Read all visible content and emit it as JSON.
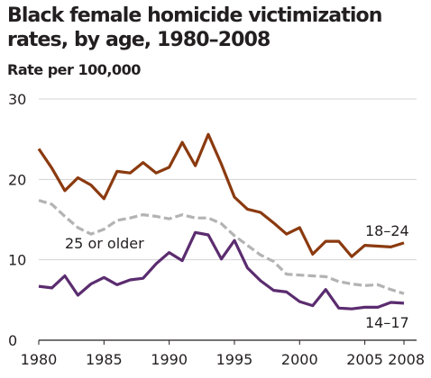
{
  "chart_data": {
    "type": "line",
    "title": "Black female homicide victimization rates, by age, 1980–2008",
    "ylabel": "Rate per 100,000",
    "xlabel": "",
    "x": [
      1980,
      1981,
      1982,
      1983,
      1984,
      1985,
      1986,
      1987,
      1988,
      1989,
      1990,
      1991,
      1992,
      1993,
      1994,
      1995,
      1996,
      1997,
      1998,
      1999,
      2000,
      2001,
      2002,
      2003,
      2004,
      2005,
      2006,
      2007,
      2008
    ],
    "xticks": [
      1980,
      1985,
      1990,
      1995,
      2000,
      2005,
      2008
    ],
    "xtick_labels": [
      "1980",
      "1985",
      "1990",
      "1995",
      "2000",
      "2005",
      "2008"
    ],
    "yticks": [
      0,
      10,
      20,
      30
    ],
    "ytick_labels": [
      "0",
      "10",
      "20",
      "30"
    ],
    "xlim": [
      1980,
      2008
    ],
    "ylim": [
      0,
      30
    ],
    "grid": "horizontal",
    "series": [
      {
        "name": "18–24",
        "color": "#8b3a0f",
        "style": "solid",
        "values": [
          23.8,
          21.4,
          18.6,
          20.2,
          19.3,
          17.6,
          21.0,
          20.8,
          22.1,
          20.8,
          21.5,
          24.6,
          21.7,
          25.6,
          21.9,
          17.8,
          16.3,
          15.9,
          14.6,
          13.2,
          14.0,
          10.7,
          12.3,
          12.3,
          10.4,
          11.8,
          11.7,
          11.6,
          12.1
        ]
      },
      {
        "name": "25 or older",
        "color": "#b3b3b3",
        "style": "dashed",
        "values": [
          17.4,
          16.9,
          15.4,
          14.0,
          13.2,
          13.8,
          14.9,
          15.2,
          15.6,
          15.4,
          15.1,
          15.6,
          15.2,
          15.2,
          14.5,
          13.0,
          11.8,
          10.6,
          9.8,
          8.2,
          8.1,
          8.0,
          7.9,
          7.3,
          7.0,
          6.8,
          6.9,
          6.3,
          5.8
        ]
      },
      {
        "name": "14–17",
        "color": "#5b2c6f",
        "style": "solid",
        "values": [
          6.7,
          6.5,
          8.0,
          5.6,
          7.0,
          7.8,
          6.9,
          7.5,
          7.7,
          9.5,
          10.9,
          9.9,
          13.4,
          13.1,
          10.1,
          12.4,
          9.0,
          7.4,
          6.2,
          6.0,
          4.8,
          4.3,
          6.3,
          4.0,
          3.9,
          4.1,
          4.1,
          4.7,
          4.6
        ]
      }
    ]
  }
}
